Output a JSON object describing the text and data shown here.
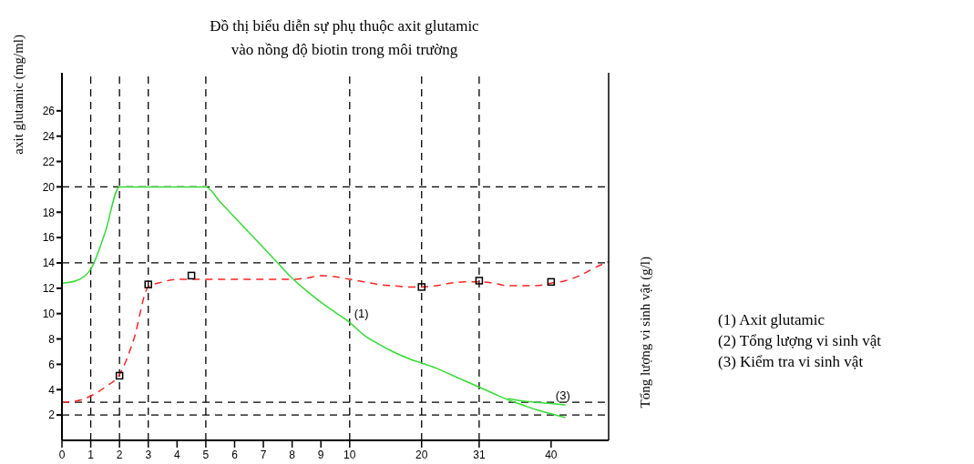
{
  "chart_data": {
    "type": "line",
    "title": "Đồ thị biểu diễn sự phụ thuộc axit glutamic\nvào nồng độ biotin trong môi trường",
    "ylabel": "axit glutamic (mg/ml)",
    "y2label": "Tổng lượng vi sinh vật (g/l)",
    "categories": [
      "0",
      null,
      "1",
      null,
      "2",
      null,
      "3",
      null,
      "4",
      null,
      "5",
      null,
      "6",
      null,
      "7",
      null,
      "8",
      null,
      "9",
      null,
      "10",
      null,
      null,
      null,
      null,
      "20",
      null,
      null,
      null,
      "31",
      null,
      null,
      null,
      null,
      "40",
      null,
      null,
      null,
      null
    ],
    "ylim": [
      0,
      29
    ],
    "yticks": [
      2,
      4,
      6,
      8,
      10,
      12,
      14,
      16,
      18,
      20,
      22,
      24,
      26
    ],
    "grid": false,
    "legend": false,
    "series": [
      {
        "color": "#33dd33",
        "line_style": "solid",
        "values": [
          12.4,
          12.6,
          13.5,
          16.4,
          20,
          20,
          20,
          20,
          20,
          20,
          20,
          18.8,
          17.6,
          16.4,
          15.2,
          14,
          12.8,
          11.8,
          10.9,
          10.1,
          9.3,
          8.3,
          7.6,
          7,
          6.5,
          6.1,
          5.7,
          5.2,
          4.7,
          4.2,
          3.7,
          3.2,
          2.8,
          2.4,
          2.1,
          1.8,
          null,
          null,
          null
        ]
      },
      {
        "color": "#33dd33",
        "line_style": "solid",
        "values": [
          null,
          null,
          null,
          null,
          null,
          null,
          null,
          null,
          null,
          null,
          null,
          null,
          null,
          null,
          null,
          null,
          null,
          null,
          null,
          null,
          null,
          null,
          null,
          null,
          null,
          null,
          null,
          null,
          null,
          null,
          null,
          3.3,
          3.1,
          3,
          2.9,
          2.8,
          null,
          null,
          null
        ]
      },
      {
        "color": "#ff2222",
        "line_style": "dashed",
        "values": [
          3,
          3.1,
          3.5,
          4.2,
          5.2,
          8,
          12.1,
          12.5,
          12.7,
          12.7,
          12.7,
          12.7,
          12.7,
          12.7,
          12.7,
          12.7,
          12.7,
          12.8,
          13,
          12.9,
          12.7,
          12.5,
          12.3,
          12.2,
          12.1,
          12.1,
          12.2,
          12.4,
          12.5,
          12.5,
          12.4,
          12.2,
          12.2,
          12.2,
          12.4,
          12.6,
          13,
          13.6,
          14.1
        ]
      },
      {
        "type": "scatter",
        "color": "#000000",
        "marker": "square",
        "values": [
          null,
          null,
          null,
          null,
          5.1,
          null,
          12.3,
          null,
          null,
          13,
          null,
          null,
          null,
          null,
          null,
          null,
          null,
          null,
          null,
          null,
          null,
          null,
          null,
          null,
          null,
          12.1,
          null,
          null,
          null,
          12.6,
          null,
          null,
          null,
          null,
          12.5,
          null,
          null,
          null,
          null
        ]
      }
    ],
    "ref_lines": [
      {
        "axis": "x",
        "value": "1",
        "color": "#000000",
        "line_style": "dashed"
      },
      {
        "axis": "x",
        "value": "2",
        "color": "#000000",
        "line_style": "dashed"
      },
      {
        "axis": "x",
        "value": "3",
        "color": "#000000",
        "line_style": "dashed"
      },
      {
        "axis": "x",
        "value": "5",
        "color": "#000000",
        "line_style": "dashed"
      },
      {
        "axis": "x",
        "value": "10",
        "color": "#000000",
        "line_style": "dashed"
      },
      {
        "axis": "x",
        "value": "20",
        "color": "#000000",
        "line_style": "dashed"
      },
      {
        "axis": "x",
        "value": "31",
        "color": "#000000",
        "line_style": "dashed"
      },
      {
        "axis": "y",
        "value": 2,
        "color": "#000000",
        "line_style": "dashed"
      },
      {
        "axis": "y",
        "value": 3,
        "color": "#000000",
        "line_style": "dashed"
      },
      {
        "axis": "y",
        "value": 14,
        "color": "#000000",
        "line_style": "dashed"
      },
      {
        "axis": "y",
        "value": 20,
        "color": "#000000",
        "line_style": "dashed"
      }
    ],
    "annotations": [
      {
        "text": "(1)",
        "x": "10",
        "y": 9.3
      },
      {
        "text": "(3)",
        "x": "40",
        "y": 2.9
      },
      "(1) Axit glutamic",
      "(2) Tổng lượng vi sinh vật",
      "(3) Kiểm tra vi sinh vật"
    ]
  }
}
